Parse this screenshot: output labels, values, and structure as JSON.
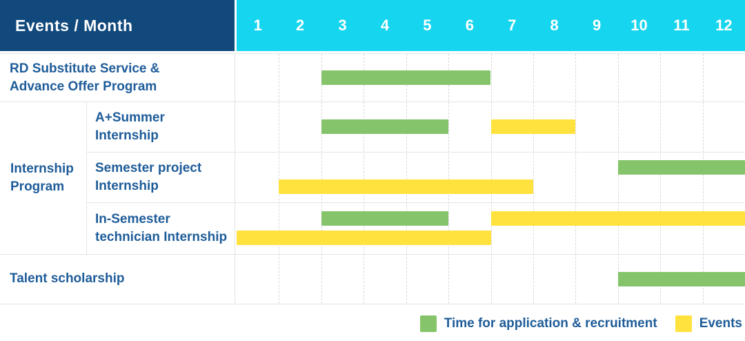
{
  "header": {
    "title": "Events / Month",
    "months": [
      "1",
      "2",
      "3",
      "4",
      "5",
      "6",
      "7",
      "8",
      "9",
      "10",
      "11",
      "12"
    ]
  },
  "colors": {
    "header_bg": "#11497C",
    "months_bg": "#16D5EF",
    "recruitment": "#85C46A",
    "event": "#FFE23E",
    "label_text": "#1E5C99",
    "grid_solid": "#E4E4E4",
    "grid_dashed": "#D8D8D8"
  },
  "legend": [
    {
      "label": "Time for application & recruitment",
      "type": "recruitment"
    },
    {
      "label": "Events",
      "type": "event"
    }
  ],
  "chart_data": {
    "type": "gantt",
    "title": "Events / Month",
    "x_unit": "month",
    "x_range": [
      1,
      12
    ],
    "grid": "dashed-vertical",
    "legend_position": "bottom-right",
    "legend": [
      {
        "label": "Time for application & recruitment",
        "type": "recruitment",
        "color": "#85C46A"
      },
      {
        "label": "Events",
        "type": "event",
        "color": "#FFE23E"
      }
    ],
    "group_label_lines": [
      "Internship",
      "Program"
    ],
    "rows": [
      {
        "group": "",
        "label": "RD Substitute Service & Advance Offer Program",
        "label_lines": [
          "RD Substitute Service &",
          "Advance Offer Program"
        ],
        "lanes": [
          [
            {
              "start_month": 3,
              "end_month": 6,
              "type": "recruitment"
            }
          ]
        ]
      },
      {
        "group": "Internship Program",
        "label": "A+Summer Internship",
        "label_lines": [
          "A+Summer",
          "Internship"
        ],
        "lanes": [
          [
            {
              "start_month": 3,
              "end_month": 5,
              "type": "recruitment"
            },
            {
              "start_month": 7,
              "end_month": 8,
              "type": "event"
            }
          ]
        ]
      },
      {
        "group": "Internship Program",
        "label": "Semester project Internship",
        "label_lines": [
          "Semester project",
          "Internship"
        ],
        "lanes": [
          [
            {
              "start_month": 10,
              "end_month": 12,
              "type": "recruitment"
            }
          ],
          [
            {
              "start_month": 2,
              "end_month": 7,
              "type": "event"
            }
          ]
        ]
      },
      {
        "group": "Internship Program",
        "label": "In-Semester technician Internship",
        "label_lines": [
          "In-Semester",
          "technician Internship"
        ],
        "lanes": [
          [
            {
              "start_month": 3,
              "end_month": 5,
              "type": "recruitment"
            },
            {
              "start_month": 7,
              "end_month": 12,
              "type": "event"
            }
          ],
          [
            {
              "start_month": 1,
              "end_month": 6,
              "type": "event"
            }
          ]
        ]
      },
      {
        "group": "",
        "label": "Talent scholarship",
        "label_lines": [
          "Talent scholarship"
        ],
        "lanes": [
          [
            {
              "start_month": 10,
              "end_month": 12,
              "type": "recruitment"
            }
          ]
        ]
      }
    ]
  }
}
